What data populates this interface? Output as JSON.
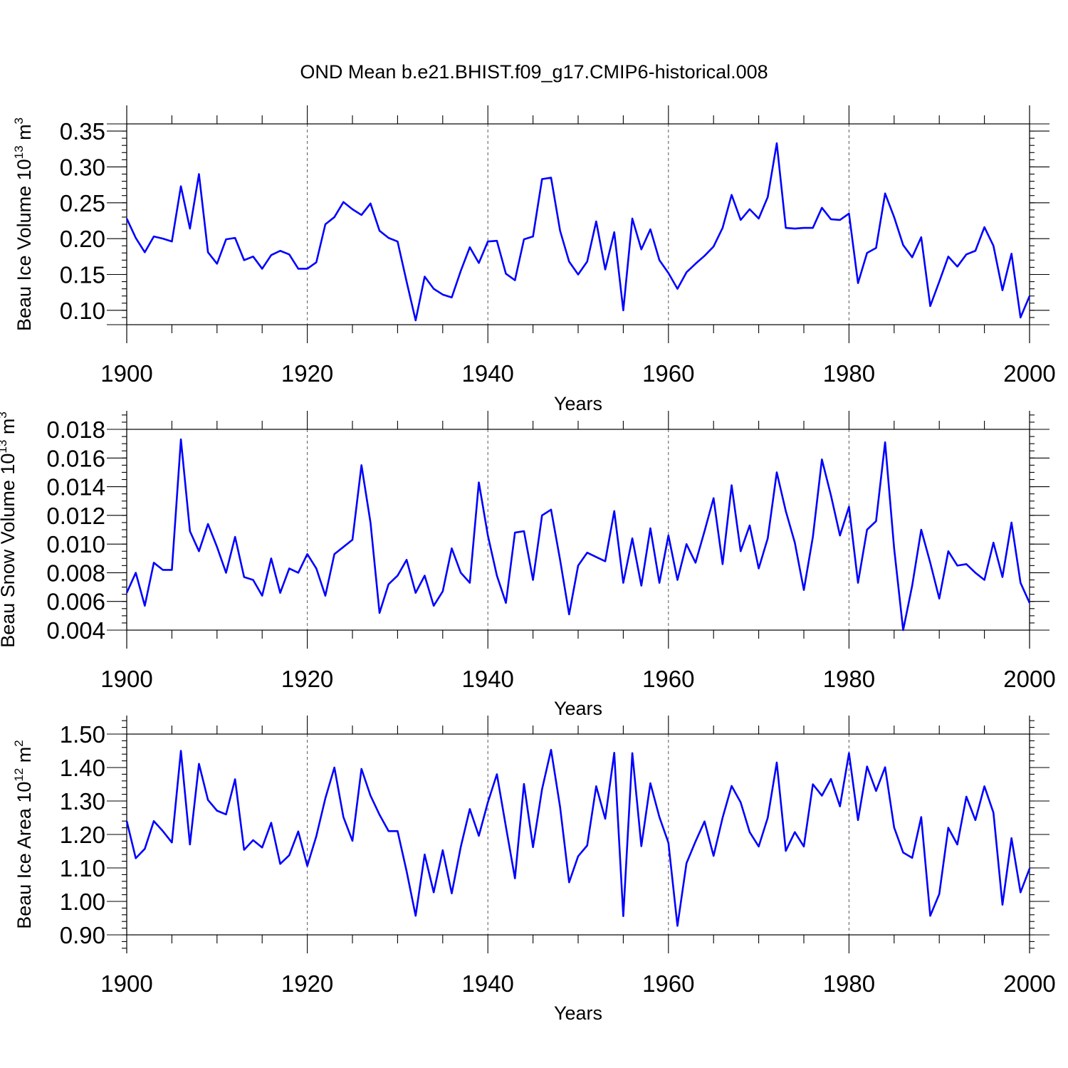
{
  "title": "OND Mean b.e21.BHIST.f09_g17.CMIP6-historical.008",
  "chart_data": [
    {
      "type": "line",
      "ylabel": "Beau Ice Volume 10",
      "ylabel_exponent": "13",
      "ylabel_unit": " m",
      "ylabel_unit_exponent": "3",
      "xlabel": "Years",
      "xlim": [
        1900,
        2000
      ],
      "ylim": [
        0.08,
        0.36
      ],
      "yticks": [
        0.1,
        0.15,
        0.2,
        0.25,
        0.3,
        0.35
      ],
      "ytick_labels": [
        "0.10",
        "0.15",
        "0.20",
        "0.25",
        "0.30",
        "0.35"
      ],
      "yminor": [
        0.09,
        0.1,
        0.11,
        0.12,
        0.13,
        0.14,
        0.15,
        0.16,
        0.17,
        0.18,
        0.19,
        0.2,
        0.21,
        0.22,
        0.23,
        0.24,
        0.25,
        0.26,
        0.27,
        0.28,
        0.29,
        0.3,
        0.31,
        0.32,
        0.33,
        0.34,
        0.35
      ],
      "xticks": [
        1900,
        1920,
        1940,
        1960,
        1980,
        2000
      ],
      "xtick_labels": [
        "1900",
        "1920",
        "1940",
        "1960",
        "1980",
        "2000"
      ],
      "series": [
        {
          "name": "Beau Ice Volume",
          "color": "#0000ff",
          "x_start": 1900,
          "values": [
            0.228,
            0.201,
            0.181,
            0.203,
            0.2,
            0.196,
            0.273,
            0.214,
            0.29,
            0.181,
            0.165,
            0.199,
            0.201,
            0.17,
            0.175,
            0.158,
            0.177,
            0.183,
            0.178,
            0.158,
            0.158,
            0.167,
            0.22,
            0.23,
            0.251,
            0.241,
            0.233,
            0.249,
            0.211,
            0.201,
            0.196,
            0.14,
            0.086,
            0.147,
            0.13,
            0.122,
            0.118,
            0.155,
            0.188,
            0.166,
            0.196,
            0.197,
            0.151,
            0.142,
            0.199,
            0.203,
            0.283,
            0.285,
            0.211,
            0.168,
            0.15,
            0.168,
            0.224,
            0.157,
            0.209,
            0.1,
            0.228,
            0.185,
            0.213,
            0.17,
            0.152,
            0.13,
            0.153,
            0.165,
            0.176,
            0.189,
            0.215,
            0.261,
            0.226,
            0.241,
            0.228,
            0.258,
            0.333,
            0.215,
            0.214,
            0.215,
            0.215,
            0.243,
            0.227,
            0.226,
            0.235,
            0.138,
            0.18,
            0.187,
            0.263,
            0.23,
            0.191,
            0.174,
            0.202,
            0.106,
            0.14,
            0.175,
            0.161,
            0.178,
            0.183,
            0.216,
            0.19,
            0.128,
            0.179,
            0.09,
            0.12
          ]
        }
      ]
    },
    {
      "type": "line",
      "ylabel": "Beau Snow Volume 10",
      "ylabel_exponent": "13",
      "ylabel_unit": " m",
      "ylabel_unit_exponent": "3",
      "xlabel": "Years",
      "xlim": [
        1900,
        2000
      ],
      "ylim": [
        0.004,
        0.018
      ],
      "yticks": [
        0.004,
        0.006,
        0.008,
        0.01,
        0.012,
        0.014,
        0.016,
        0.018
      ],
      "ytick_labels": [
        "0.004",
        "0.006",
        "0.008",
        "0.010",
        "0.012",
        "0.014",
        "0.016",
        "0.018"
      ],
      "yminor": [
        0.0045,
        0.005,
        0.0055,
        0.006,
        0.0065,
        0.007,
        0.0075,
        0.008,
        0.0085,
        0.009,
        0.0095,
        0.01,
        0.0105,
        0.011,
        0.0115,
        0.012,
        0.0125,
        0.013,
        0.0135,
        0.014,
        0.0145,
        0.015,
        0.0155,
        0.016,
        0.0165,
        0.017,
        0.0175,
        0.018,
        0.0185,
        0.019
      ],
      "xticks": [
        1900,
        1920,
        1940,
        1960,
        1980,
        2000
      ],
      "xtick_labels": [
        "1900",
        "1920",
        "1940",
        "1960",
        "1980",
        "2000"
      ],
      "series": [
        {
          "name": "Beau Snow Volume",
          "color": "#0000ff",
          "x_start": 1900,
          "values": [
            0.0066,
            0.008,
            0.0057,
            0.0087,
            0.0082,
            0.0082,
            0.0173,
            0.0109,
            0.0095,
            0.0114,
            0.0098,
            0.008,
            0.0105,
            0.0077,
            0.0075,
            0.0064,
            0.009,
            0.0066,
            0.0083,
            0.008,
            0.0093,
            0.0083,
            0.0064,
            0.0093,
            0.0098,
            0.0103,
            0.0155,
            0.0115,
            0.0052,
            0.0072,
            0.0078,
            0.0089,
            0.0066,
            0.0078,
            0.0057,
            0.0067,
            0.0097,
            0.008,
            0.0073,
            0.0143,
            0.0106,
            0.0078,
            0.0059,
            0.0108,
            0.0109,
            0.0075,
            0.012,
            0.0124,
            0.0089,
            0.0051,
            0.0085,
            0.0094,
            0.0091,
            0.0088,
            0.0123,
            0.0073,
            0.0104,
            0.0071,
            0.0111,
            0.0073,
            0.0106,
            0.0075,
            0.01,
            0.0087,
            0.0109,
            0.0132,
            0.0086,
            0.0141,
            0.0095,
            0.0113,
            0.0083,
            0.0104,
            0.015,
            0.0123,
            0.0101,
            0.0068,
            0.0105,
            0.0159,
            0.0134,
            0.0106,
            0.0126,
            0.0073,
            0.011,
            0.0116,
            0.0171,
            0.0097,
            0.004,
            0.0071,
            0.011,
            0.0087,
            0.0062,
            0.0095,
            0.0085,
            0.0086,
            0.008,
            0.0075,
            0.0101,
            0.0077,
            0.0115,
            0.0073,
            0.0059
          ]
        }
      ]
    },
    {
      "type": "line",
      "ylabel": "Beau Ice Area 10",
      "ylabel_exponent": "12",
      "ylabel_unit": " m",
      "ylabel_unit_exponent": "2",
      "xlabel": "Years",
      "xlim": [
        1900,
        2000
      ],
      "ylim": [
        0.9,
        1.5
      ],
      "yticks": [
        0.9,
        1.0,
        1.1,
        1.2,
        1.3,
        1.4,
        1.5
      ],
      "ytick_labels": [
        "0.90",
        "1.00",
        "1.10",
        "1.20",
        "1.30",
        "1.40",
        "1.50"
      ],
      "yminor": [
        0.84,
        0.86,
        0.88,
        0.9,
        0.92,
        0.94,
        0.96,
        0.98,
        1.0,
        1.02,
        1.04,
        1.06,
        1.08,
        1.1,
        1.12,
        1.14,
        1.16,
        1.18,
        1.2,
        1.22,
        1.24,
        1.26,
        1.28,
        1.3,
        1.32,
        1.34,
        1.36,
        1.38,
        1.4,
        1.42,
        1.44,
        1.46,
        1.48,
        1.5,
        1.52,
        1.54,
        1.56
      ],
      "xticks": [
        1900,
        1920,
        1940,
        1960,
        1980,
        2000
      ],
      "xtick_labels": [
        "1900",
        "1920",
        "1940",
        "1960",
        "1980",
        "2000"
      ],
      "series": [
        {
          "name": "Beau Ice Area",
          "color": "#0000ff",
          "x_start": 1900,
          "values": [
            1.24,
            1.129,
            1.157,
            1.24,
            1.21,
            1.176,
            1.45,
            1.17,
            1.411,
            1.303,
            1.271,
            1.26,
            1.365,
            1.154,
            1.183,
            1.161,
            1.235,
            1.112,
            1.138,
            1.209,
            1.106,
            1.195,
            1.308,
            1.4,
            1.252,
            1.181,
            1.396,
            1.316,
            1.259,
            1.21,
            1.21,
            1.09,
            0.957,
            1.14,
            1.027,
            1.153,
            1.024,
            1.163,
            1.276,
            1.196,
            1.296,
            1.38,
            1.223,
            1.069,
            1.351,
            1.162,
            1.335,
            1.453,
            1.282,
            1.057,
            1.135,
            1.167,
            1.344,
            1.247,
            1.444,
            0.956,
            1.443,
            1.165,
            1.353,
            1.252,
            1.175,
            0.927,
            1.114,
            1.179,
            1.239,
            1.136,
            1.25,
            1.345,
            1.296,
            1.207,
            1.164,
            1.25,
            1.415,
            1.151,
            1.207,
            1.164,
            1.35,
            1.316,
            1.366,
            1.284,
            1.443,
            1.243,
            1.403,
            1.33,
            1.401,
            1.221,
            1.146,
            1.13,
            1.252,
            0.957,
            1.022,
            1.22,
            1.17,
            1.313,
            1.243,
            1.344,
            1.265,
            0.99,
            1.189,
            1.027,
            1.098
          ]
        }
      ]
    }
  ]
}
